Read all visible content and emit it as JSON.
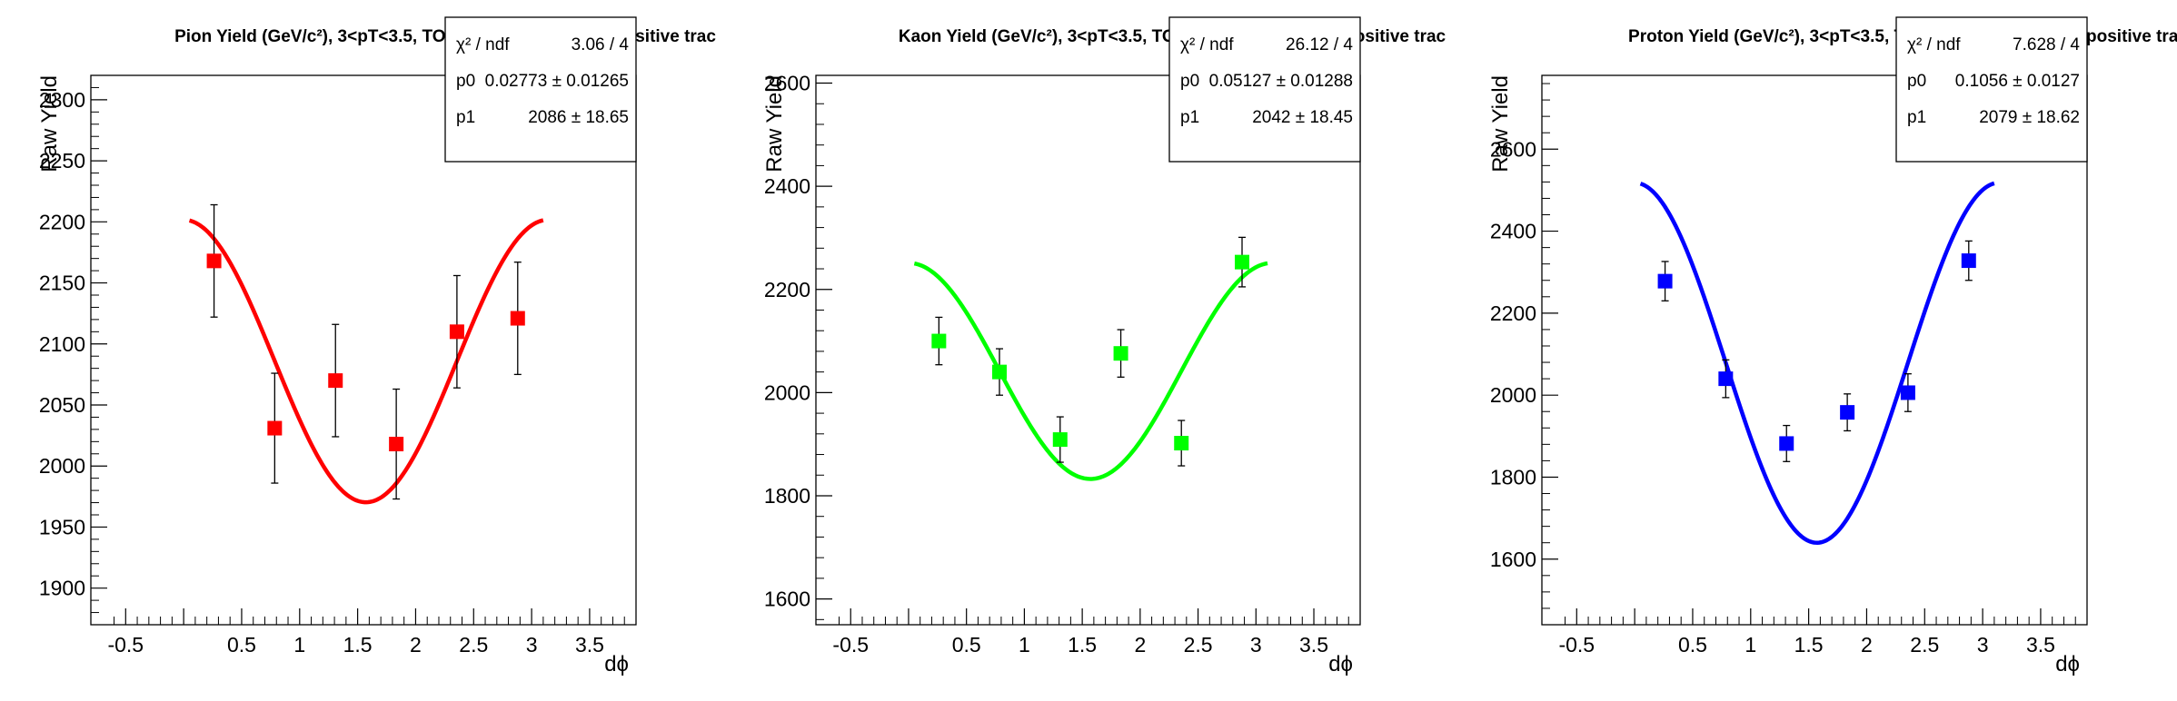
{
  "colors": {
    "pion": "#ff0000",
    "kaon": "#00ff00",
    "proton": "#0000ff",
    "frame": "#000000"
  },
  "chart_data": [
    {
      "type": "scatter",
      "title": "Pion Yield (GeV/c²), 3<pT<3.5, TOF.W, 0-5% centrality, positive trac",
      "xlabel": "dϕ",
      "ylabel": "Raw Yield",
      "xlim": [
        -0.8,
        3.9
      ],
      "ylim": [
        1870,
        2320
      ],
      "xticks": [
        "-0.5",
        "0.5",
        "1",
        "1.5",
        "2",
        "2.5",
        "3",
        "3.5"
      ],
      "yticks": [
        "1900",
        "1950",
        "2000",
        "2050",
        "2100",
        "2150",
        "2200",
        "2250",
        "2300"
      ],
      "ytick_values": [
        1900,
        1950,
        2000,
        2050,
        2100,
        2150,
        2200,
        2250,
        2300
      ],
      "points": [
        {
          "x": 0.262,
          "y": 2168,
          "err": 46
        },
        {
          "x": 0.785,
          "y": 2031,
          "err": 45
        },
        {
          "x": 1.309,
          "y": 2070,
          "err": 46
        },
        {
          "x": 1.833,
          "y": 2018,
          "err": 45
        },
        {
          "x": 2.356,
          "y": 2110,
          "err": 46
        },
        {
          "x": 2.88,
          "y": 2121,
          "err": 46
        }
      ],
      "fit": {
        "p0": 0.02773,
        "p1": 2086,
        "xmin": 0.05,
        "xmax": 3.1
      },
      "stats": [
        {
          "label": "χ² / ndf",
          "value": "3.06 / 4"
        },
        {
          "label": "p0",
          "value": "0.02773 ± 0.01265"
        },
        {
          "label": "p1",
          "value": "2086 ± 18.65"
        }
      ],
      "color_key": "pion"
    },
    {
      "type": "scatter",
      "title": "Kaon Yield (GeV/c²), 3<pT<3.5, TOF.W, 0-5% centrality, positive trac",
      "xlabel": "dϕ",
      "ylabel": "Raw Yield",
      "xlim": [
        -0.8,
        3.9
      ],
      "ylim": [
        1550,
        2615
      ],
      "xticks": [
        "-0.5",
        "0.5",
        "1",
        "1.5",
        "2",
        "2.5",
        "3",
        "3.5"
      ],
      "yticks": [
        "1600",
        "1800",
        "2000",
        "2200",
        "2400",
        "2600"
      ],
      "ytick_values": [
        1600,
        1800,
        2000,
        2200,
        2400,
        2600
      ],
      "points": [
        {
          "x": 0.262,
          "y": 2100,
          "err": 46
        },
        {
          "x": 0.785,
          "y": 2040,
          "err": 45
        },
        {
          "x": 1.309,
          "y": 1909,
          "err": 44
        },
        {
          "x": 1.833,
          "y": 2076,
          "err": 46
        },
        {
          "x": 2.356,
          "y": 1902,
          "err": 44
        },
        {
          "x": 2.88,
          "y": 2253,
          "err": 48
        }
      ],
      "fit": {
        "p0": 0.05127,
        "p1": 2042,
        "xmin": 0.05,
        "xmax": 3.1
      },
      "stats": [
        {
          "label": "χ² / ndf",
          "value": "26.12 / 4"
        },
        {
          "label": "p0",
          "value": "0.05127 ± 0.01288"
        },
        {
          "label": "p1",
          "value": "2042 ± 18.45"
        }
      ],
      "color_key": "kaon"
    },
    {
      "type": "scatter",
      "title": "Proton Yield (GeV/c²), 3<pT<3.5, TOF.W, 0-5% centrality, positive trac",
      "xlabel": "dϕ",
      "ylabel": "Raw Yield",
      "xlim": [
        -0.8,
        3.9
      ],
      "ylim": [
        1440,
        2780
      ],
      "xticks": [
        "-0.5",
        "0.5",
        "1",
        "1.5",
        "2",
        "2.5",
        "3",
        "3.5"
      ],
      "yticks": [
        "1600",
        "1800",
        "2000",
        "2200",
        "2400",
        "2600"
      ],
      "ytick_values": [
        1600,
        1800,
        2000,
        2200,
        2400,
        2600
      ],
      "points": [
        {
          "x": 0.262,
          "y": 2278,
          "err": 48
        },
        {
          "x": 0.785,
          "y": 2040,
          "err": 46
        },
        {
          "x": 1.309,
          "y": 1882,
          "err": 44
        },
        {
          "x": 1.833,
          "y": 1958,
          "err": 45
        },
        {
          "x": 2.356,
          "y": 2006,
          "err": 46
        },
        {
          "x": 2.88,
          "y": 2328,
          "err": 48
        }
      ],
      "fit": {
        "p0": 0.1056,
        "p1": 2079,
        "xmin": 0.05,
        "xmax": 3.1
      },
      "stats": [
        {
          "label": "χ² / ndf",
          "value": "7.628 / 4"
        },
        {
          "label": "p0",
          "value": "0.1056 ± 0.0127"
        },
        {
          "label": "p1",
          "value": "2079 ± 18.62"
        }
      ],
      "color_key": "proton"
    }
  ]
}
